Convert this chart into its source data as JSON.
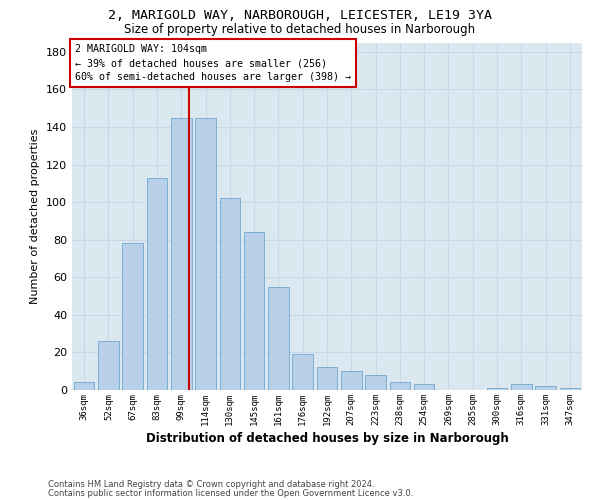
{
  "title1": "2, MARIGOLD WAY, NARBOROUGH, LEICESTER, LE19 3YA",
  "title2": "Size of property relative to detached houses in Narborough",
  "xlabel": "Distribution of detached houses by size in Narborough",
  "ylabel": "Number of detached properties",
  "categories": [
    "36sqm",
    "52sqm",
    "67sqm",
    "83sqm",
    "99sqm",
    "114sqm",
    "130sqm",
    "145sqm",
    "161sqm",
    "176sqm",
    "192sqm",
    "207sqm",
    "223sqm",
    "238sqm",
    "254sqm",
    "269sqm",
    "285sqm",
    "300sqm",
    "316sqm",
    "331sqm",
    "347sqm"
  ],
  "values": [
    4,
    26,
    78,
    113,
    145,
    145,
    102,
    84,
    55,
    19,
    12,
    10,
    8,
    4,
    3,
    0,
    0,
    1,
    3,
    2,
    1
  ],
  "bar_color": "#b8d0e8",
  "bar_edge_color": "#6fa8d0",
  "property_label": "2 MARIGOLD WAY: 104sqm",
  "annotation_line1": "← 39% of detached houses are smaller (256)",
  "annotation_line2": "60% of semi-detached houses are larger (398) →",
  "vline_color": "#cc0000",
  "annotation_box_color": "#ffffff",
  "annotation_box_edge": "#cc0000",
  "ylim": [
    0,
    185
  ],
  "yticks": [
    0,
    20,
    40,
    60,
    80,
    100,
    120,
    140,
    160,
    180
  ],
  "grid_color": "#c8d8e8",
  "background_color": "#dce8f0",
  "footer1": "Contains HM Land Registry data © Crown copyright and database right 2024.",
  "footer2": "Contains public sector information licensed under the Open Government Licence v3.0."
}
